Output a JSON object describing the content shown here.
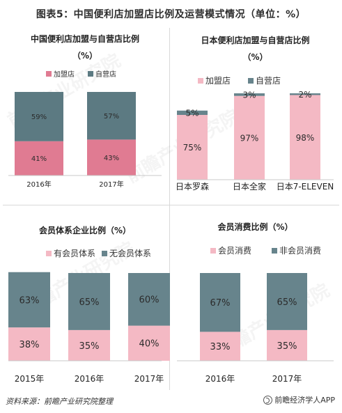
{
  "page": {
    "title": "图表5：中国便利店加盟店比例及运营模式情况（单位：%）",
    "source": "资料来源：前瞻产业研究院整理",
    "brand": "前瞻经济学人APP",
    "watermark": "前瞻产业研究院"
  },
  "colors": {
    "pink_dark": "#e07b92",
    "pink_light": "#f4b9c4",
    "slate": "#5c7a82",
    "slate_light": "#67848c"
  },
  "chart_data": [
    {
      "id": "china",
      "type": "bar",
      "stacked": true,
      "title_lines": [
        "中国便利店加盟与自营店比例",
        "（%）"
      ],
      "categories": [
        "2016年",
        "2017年"
      ],
      "series": [
        {
          "name": "加盟店",
          "values": [
            41,
            43
          ],
          "labels": [
            "41%",
            "43%"
          ]
        },
        {
          "name": "自营店",
          "values": [
            59,
            57
          ],
          "labels": [
            "59%",
            "57%"
          ]
        }
      ],
      "ylim": [
        0,
        100
      ]
    },
    {
      "id": "japan",
      "type": "bar",
      "stacked": true,
      "title_lines": [
        "日本便利店加盟与自营店比例",
        "（%）"
      ],
      "categories": [
        "日本罗森",
        "日本全家",
        "日本7-ELEVEN"
      ],
      "series": [
        {
          "name": "加盟店",
          "values": [
            75,
            97,
            98
          ],
          "labels": [
            "75%",
            "97%",
            "98%"
          ]
        },
        {
          "name": "自营店",
          "values": [
            5,
            3,
            2
          ],
          "labels": [
            "5%",
            "3%",
            "2%"
          ]
        }
      ],
      "ylim": [
        0,
        100
      ]
    },
    {
      "id": "member_system",
      "type": "bar",
      "stacked": true,
      "title_lines": [
        "会员体系企业比例（%）"
      ],
      "categories": [
        "2015年",
        "2016年",
        "2017年"
      ],
      "series": [
        {
          "name": "有会员体系",
          "values": [
            38,
            35,
            40
          ],
          "labels": [
            "38%",
            "35%",
            "40%"
          ]
        },
        {
          "name": "无会员体系",
          "values": [
            63,
            65,
            60
          ],
          "labels": [
            "63%",
            "65%",
            "60%"
          ]
        }
      ],
      "ylim": [
        0,
        100
      ]
    },
    {
      "id": "member_spend",
      "type": "bar",
      "stacked": true,
      "title_lines": [
        "会员消费比例（%）"
      ],
      "categories": [
        "2016年",
        "2017年"
      ],
      "series": [
        {
          "name": "会员消费",
          "values": [
            33,
            35
          ],
          "labels": [
            "33%",
            "35%"
          ]
        },
        {
          "name": "非会员消费",
          "values": [
            67,
            65
          ],
          "labels": [
            "67%",
            "65%"
          ]
        }
      ],
      "ylim": [
        0,
        100
      ]
    }
  ]
}
